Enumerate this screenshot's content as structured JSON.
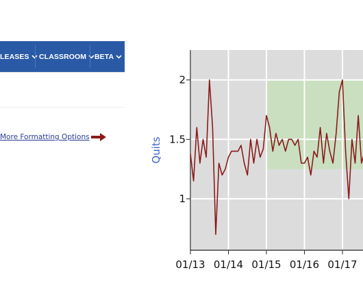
{
  "nav": {
    "items": [
      {
        "label": "LEASES"
      },
      {
        "label": "CLASSROOM"
      },
      {
        "label": "BETA"
      }
    ]
  },
  "formatting": {
    "link_label": "More Formatting Options"
  },
  "colors": {
    "nav_bg": "#2a5aa5",
    "link": "#2a3d96",
    "arrow": "#8b1a1a",
    "plot_bg": "#dcdcdc",
    "band": "#c9dfc0",
    "series": "#8b1a1a",
    "ylabel": "#3a66c4"
  },
  "icons": {
    "nav_dropdown": "chevron-down-icon",
    "link_arrow": "right-arrow-icon"
  },
  "chart_data": {
    "type": "line",
    "xlabel": "",
    "ylabel": "Quits",
    "yticks": [
      "1",
      "1.5",
      "2"
    ],
    "xticks": [
      "01/13",
      "01/14",
      "01/15",
      "01/16",
      "01/17"
    ],
    "ylim": [
      0.57,
      2.43
    ],
    "xlim": [
      "2013-01",
      "2017-09"
    ],
    "grid": true,
    "shaded_band": {
      "x_from": "2015-01",
      "x_to": "2017-09",
      "y_from": 1.25,
      "y_to": 2.0
    },
    "series": [
      {
        "x": [
          "2013-01",
          "2013-02",
          "2013-03",
          "2013-04",
          "2013-05",
          "2013-06",
          "2013-07",
          "2013-08",
          "2013-09",
          "2013-10",
          "2013-11",
          "2013-12",
          "2014-01",
          "2014-02",
          "2014-03",
          "2014-04",
          "2014-05",
          "2014-06",
          "2014-07",
          "2014-08",
          "2014-09",
          "2014-10",
          "2014-11",
          "2014-12",
          "2015-01",
          "2015-02",
          "2015-03",
          "2015-04",
          "2015-05",
          "2015-06",
          "2015-07",
          "2015-08",
          "2015-09",
          "2015-10",
          "2015-11",
          "2015-12",
          "2016-01",
          "2016-02",
          "2016-03",
          "2016-04",
          "2016-05",
          "2016-06",
          "2016-07",
          "2016-08",
          "2016-09",
          "2016-10",
          "2016-11",
          "2016-12",
          "2017-01",
          "2017-02",
          "2017-03",
          "2017-04",
          "2017-05",
          "2017-06",
          "2017-07",
          "2017-08",
          "2017-09"
        ],
        "values": [
          1.38,
          1.15,
          1.6,
          1.3,
          1.5,
          1.35,
          2.0,
          1.6,
          0.7,
          1.3,
          1.2,
          1.25,
          1.35,
          1.4,
          1.4,
          1.4,
          1.45,
          1.3,
          1.2,
          1.5,
          1.3,
          1.5,
          1.35,
          1.42,
          1.7,
          1.6,
          1.4,
          1.55,
          1.45,
          1.5,
          1.4,
          1.5,
          1.5,
          1.45,
          1.5,
          1.3,
          1.3,
          1.35,
          1.2,
          1.4,
          1.35,
          1.6,
          1.3,
          1.55,
          1.4,
          1.3,
          1.55,
          1.9,
          2.0,
          1.4,
          1.0,
          1.5,
          1.3,
          1.7,
          1.3,
          1.4,
          1.5
        ]
      }
    ]
  }
}
